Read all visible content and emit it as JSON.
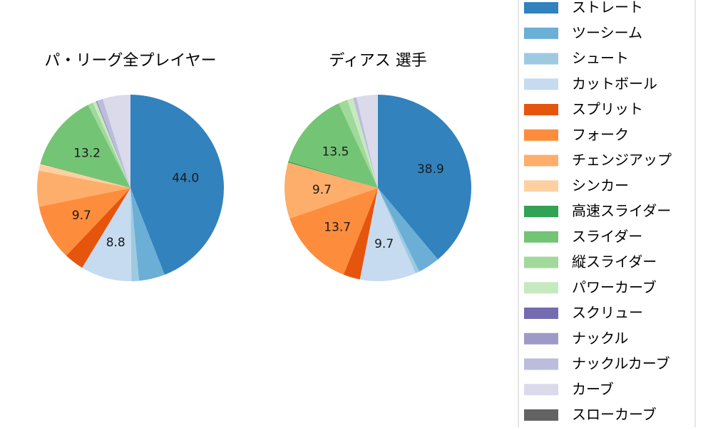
{
  "chart_data": [
    {
      "type": "pie",
      "title": "パ・リーグ全プレイヤー",
      "slices": [
        {
          "name": "ストレート",
          "value": 44.0,
          "color": "#3182bd",
          "label": "44.0"
        },
        {
          "name": "ツーシーム",
          "value": 4.5,
          "color": "#6baed6",
          "label": ""
        },
        {
          "name": "シュート",
          "value": 1.3,
          "color": "#9ecae1",
          "label": ""
        },
        {
          "name": "カットボール",
          "value": 8.8,
          "color": "#c6dbef",
          "label": "8.8"
        },
        {
          "name": "スプリット",
          "value": 3.4,
          "color": "#e6550d",
          "label": ""
        },
        {
          "name": "フォーク",
          "value": 9.7,
          "color": "#fd8d3c",
          "label": "9.7"
        },
        {
          "name": "チェンジアップ",
          "value": 6.2,
          "color": "#fdae6b",
          "label": ""
        },
        {
          "name": "シンカー",
          "value": 1.2,
          "color": "#fdd0a2",
          "label": ""
        },
        {
          "name": "高速スライダー",
          "value": 0.1,
          "color": "#31a354",
          "label": ""
        },
        {
          "name": "スライダー",
          "value": 13.2,
          "color": "#74c476",
          "label": "13.2"
        },
        {
          "name": "縦スライダー",
          "value": 0.9,
          "color": "#a1d99b",
          "label": ""
        },
        {
          "name": "パワーカーブ",
          "value": 0.6,
          "color": "#c7e9c0",
          "label": ""
        },
        {
          "name": "スクリュー",
          "value": 0.1,
          "color": "#756bb1",
          "label": ""
        },
        {
          "name": "ナックル",
          "value": 0.1,
          "color": "#9e9ac8",
          "label": ""
        },
        {
          "name": "ナックルカーブ",
          "value": 1.0,
          "color": "#bcbddc",
          "label": ""
        },
        {
          "name": "カーブ",
          "value": 4.8,
          "color": "#dadaeb",
          "label": ""
        },
        {
          "name": "スローカーブ",
          "value": 0.0,
          "color": "#636363",
          "label": ""
        }
      ]
    },
    {
      "type": "pie",
      "title": "ディアス  選手",
      "slices": [
        {
          "name": "ストレート",
          "value": 38.9,
          "color": "#3182bd",
          "label": "38.9"
        },
        {
          "name": "ツーシーム",
          "value": 3.8,
          "color": "#6baed6",
          "label": ""
        },
        {
          "name": "シュート",
          "value": 0.7,
          "color": "#9ecae1",
          "label": ""
        },
        {
          "name": "カットボール",
          "value": 9.7,
          "color": "#c6dbef",
          "label": "9.7"
        },
        {
          "name": "スプリット",
          "value": 2.9,
          "color": "#e6550d",
          "label": ""
        },
        {
          "name": "フォーク",
          "value": 13.7,
          "color": "#fd8d3c",
          "label": "13.7"
        },
        {
          "name": "チェンジアップ",
          "value": 9.7,
          "color": "#fdae6b",
          "label": "9.7"
        },
        {
          "name": "シンカー",
          "value": 0.0,
          "color": "#fdd0a2",
          "label": ""
        },
        {
          "name": "高速スライダー",
          "value": 0.2,
          "color": "#31a354",
          "label": ""
        },
        {
          "name": "スライダー",
          "value": 13.5,
          "color": "#74c476",
          "label": "13.5"
        },
        {
          "name": "縦スライダー",
          "value": 1.6,
          "color": "#a1d99b",
          "label": ""
        },
        {
          "name": "パワーカーブ",
          "value": 1.0,
          "color": "#c7e9c0",
          "label": ""
        },
        {
          "name": "スクリュー",
          "value": 0.0,
          "color": "#756bb1",
          "label": ""
        },
        {
          "name": "ナックル",
          "value": 0.0,
          "color": "#9e9ac8",
          "label": ""
        },
        {
          "name": "ナックルカーブ",
          "value": 0.6,
          "color": "#bcbddc",
          "label": ""
        },
        {
          "name": "カーブ",
          "value": 3.7,
          "color": "#dadaeb",
          "label": ""
        },
        {
          "name": "スローカーブ",
          "value": 0.0,
          "color": "#636363",
          "label": ""
        }
      ]
    }
  ],
  "legend": {
    "placement": "right",
    "entries": [
      {
        "label": "ストレート",
        "color": "#3182bd"
      },
      {
        "label": "ツーシーム",
        "color": "#6baed6"
      },
      {
        "label": "シュート",
        "color": "#9ecae1"
      },
      {
        "label": "カットボール",
        "color": "#c6dbef"
      },
      {
        "label": "スプリット",
        "color": "#e6550d"
      },
      {
        "label": "フォーク",
        "color": "#fd8d3c"
      },
      {
        "label": "チェンジアップ",
        "color": "#fdae6b"
      },
      {
        "label": "シンカー",
        "color": "#fdd0a2"
      },
      {
        "label": "高速スライダー",
        "color": "#31a354"
      },
      {
        "label": "スライダー",
        "color": "#74c476"
      },
      {
        "label": "縦スライダー",
        "color": "#a1d99b"
      },
      {
        "label": "パワーカーブ",
        "color": "#c7e9c0"
      },
      {
        "label": "スクリュー",
        "color": "#756bb1"
      },
      {
        "label": "ナックル",
        "color": "#9e9ac8"
      },
      {
        "label": "ナックルカーブ",
        "color": "#bcbddc"
      },
      {
        "label": "カーブ",
        "color": "#dadaeb"
      },
      {
        "label": "スローカーブ",
        "color": "#636363"
      }
    ]
  }
}
